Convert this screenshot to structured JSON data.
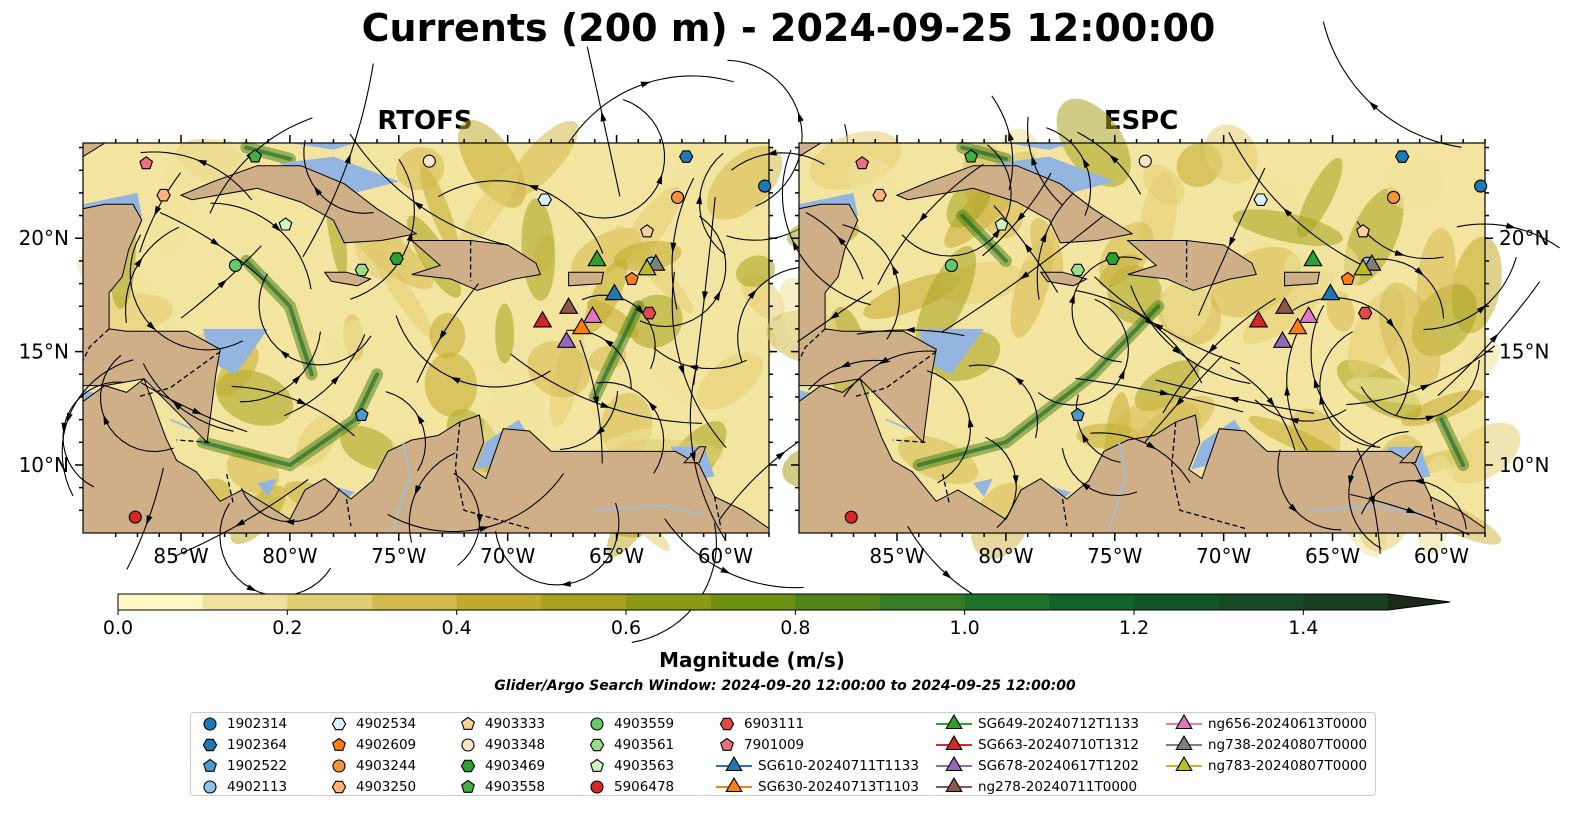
{
  "title": "Currents (200 m) - 2024-09-25 12:00:00",
  "panels": [
    {
      "title": "RTOFS"
    },
    {
      "title": "ESPC"
    }
  ],
  "axes": {
    "lon_ticks": [
      "85°W",
      "80°W",
      "75°W",
      "70°W",
      "65°W",
      "60°W"
    ],
    "lat_ticks": [
      "20°N",
      "15°N",
      "10°N"
    ],
    "lon_range": [
      -89.5,
      -58.0
    ],
    "lat_range": [
      7.0,
      24.2
    ]
  },
  "colorbar": {
    "label": "Magnitude (m/s)",
    "ticks": [
      "0.0",
      "0.2",
      "0.4",
      "0.6",
      "0.8",
      "1.0",
      "1.2",
      "1.4"
    ],
    "min": 0.0,
    "max": 1.5,
    "colors": [
      "#fff8c4",
      "#f1e29b",
      "#e2cd73",
      "#d3ba4e",
      "#c1ab2c",
      "#a8a21d",
      "#8a9a14",
      "#6e9114",
      "#4f8519",
      "#357d23",
      "#1f7228",
      "#12642a",
      "#115626",
      "#154a24",
      "#173f22",
      "#193420",
      "#1a2b1c"
    ],
    "extend": "max"
  },
  "search_window": "Glider/Argo Search Window: 2024-09-20 12:00:00 to 2024-09-25 12:00:00",
  "legend": [
    {
      "label": "1902314",
      "marker": "circle",
      "color": "#1f77b4"
    },
    {
      "label": "1902364",
      "marker": "hexagon",
      "color": "#1f77b4"
    },
    {
      "label": "1902522",
      "marker": "pentagon",
      "color": "#4a98d0"
    },
    {
      "label": "4902113",
      "marker": "circle",
      "color": "#8fc4e8"
    },
    {
      "label": "4902534",
      "marker": "hexagon",
      "color": "#dbeefc"
    },
    {
      "label": "4902609",
      "marker": "pentagon",
      "color": "#ff7f0e"
    },
    {
      "label": "4903244",
      "marker": "circle",
      "color": "#f5933a"
    },
    {
      "label": "4903250",
      "marker": "hexagon",
      "color": "#ffb27a"
    },
    {
      "label": "4903333",
      "marker": "pentagon",
      "color": "#ffcf9c"
    },
    {
      "label": "4903348",
      "marker": "circle",
      "color": "#ffe3c8"
    },
    {
      "label": "4903469",
      "marker": "hexagon",
      "color": "#2ca02c"
    },
    {
      "label": "4903558",
      "marker": "pentagon",
      "color": "#43b043"
    },
    {
      "label": "4903559",
      "marker": "circle",
      "color": "#66c866"
    },
    {
      "label": "4903561",
      "marker": "hexagon",
      "color": "#98df8a"
    },
    {
      "label": "4903563",
      "marker": "pentagon",
      "color": "#cdf5c2"
    },
    {
      "label": "5906478",
      "marker": "circle",
      "color": "#d62728"
    },
    {
      "label": "6903111",
      "marker": "hexagon",
      "color": "#e04a4a"
    },
    {
      "label": "7901009",
      "marker": "pentagon",
      "color": "#e8707a"
    },
    {
      "label": "SG610-20240711T1133",
      "marker": "triangle",
      "color": "#1f77b4"
    },
    {
      "label": "SG630-20240713T1103",
      "marker": "triangle",
      "color": "#ff7f0e"
    },
    {
      "label": "SG649-20240712T1133",
      "marker": "triangle",
      "color": "#2ca02c"
    },
    {
      "label": "SG663-20240710T1312",
      "marker": "triangle",
      "color": "#d62728"
    },
    {
      "label": "SG678-20240617T1202",
      "marker": "triangle",
      "color": "#9467bd"
    },
    {
      "label": "ng278-20240711T0000",
      "marker": "triangle",
      "color": "#8c564b"
    },
    {
      "label": "ng656-20240613T0000",
      "marker": "triangle",
      "color": "#e377c2"
    },
    {
      "label": "ng738-20240807T0000",
      "marker": "triangle",
      "color": "#7f7f7f"
    },
    {
      "label": "ng783-20240807T0000",
      "marker": "triangle",
      "color": "#bcbd22"
    }
  ],
  "positions": [
    {
      "id": "1902314",
      "lon": -58.2,
      "lat": 22.3
    },
    {
      "id": "1902364",
      "lon": -61.8,
      "lat": 23.6
    },
    {
      "id": "1902522",
      "lon": -76.7,
      "lat": 12.2
    },
    {
      "id": "4902113",
      "lon": -63.4,
      "lat": 18.9
    },
    {
      "id": "4902534",
      "lon": -68.3,
      "lat": 21.7
    },
    {
      "id": "4902609",
      "lon": -64.3,
      "lat": 18.2
    },
    {
      "id": "4903244",
      "lon": -62.2,
      "lat": 21.8
    },
    {
      "id": "4903250",
      "lon": -85.8,
      "lat": 21.9
    },
    {
      "id": "4903333",
      "lon": -63.6,
      "lat": 20.3
    },
    {
      "id": "4903348",
      "lon": -73.6,
      "lat": 23.4
    },
    {
      "id": "4903469",
      "lon": -75.1,
      "lat": 19.1
    },
    {
      "id": "4903558",
      "lon": -81.6,
      "lat": 23.6
    },
    {
      "id": "4903559",
      "lon": -82.5,
      "lat": 18.8
    },
    {
      "id": "4903561",
      "lon": -76.7,
      "lat": 18.6
    },
    {
      "id": "4903563",
      "lon": -80.2,
      "lat": 20.6
    },
    {
      "id": "5906478",
      "lon": -87.1,
      "lat": 7.7
    },
    {
      "id": "6903111",
      "lon": -63.5,
      "lat": 16.7
    },
    {
      "id": "7901009",
      "lon": -86.6,
      "lat": 23.3
    },
    {
      "id": "SG610-20240711T1133",
      "lon": -65.1,
      "lat": 17.6
    },
    {
      "id": "SG630-20240713T1103",
      "lon": -66.6,
      "lat": 16.1
    },
    {
      "id": "SG649-20240712T1133",
      "lon": -65.9,
      "lat": 19.1
    },
    {
      "id": "SG663-20240710T1312",
      "lon": -68.4,
      "lat": 16.4
    },
    {
      "id": "SG678-20240617T1202",
      "lon": -67.3,
      "lat": 15.5
    },
    {
      "id": "ng278-20240711T0000",
      "lon": -67.2,
      "lat": 17.0
    },
    {
      "id": "ng656-20240613T0000",
      "lon": -66.1,
      "lat": 16.6
    },
    {
      "id": "ng738-20240807T0000",
      "lon": -63.2,
      "lat": 18.9
    },
    {
      "id": "ng783-20240807T0000",
      "lon": -63.6,
      "lat": 18.7
    }
  ]
}
